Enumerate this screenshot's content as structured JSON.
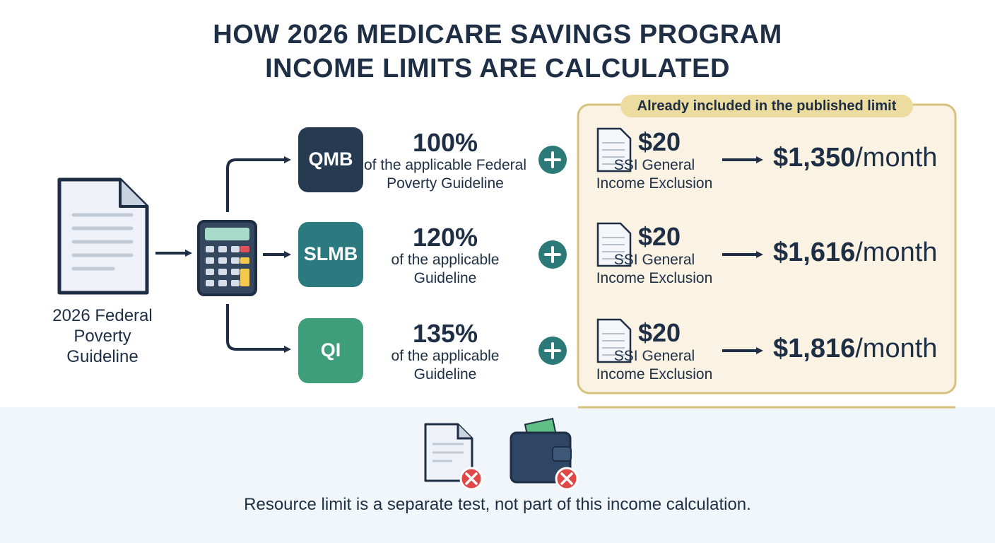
{
  "header": {
    "title_lines": [
      "HOW 2026 MEDICARE SAVINGS PROGRAM",
      "INCOME LIMITS ARE CALCULATED"
    ]
  },
  "source": {
    "label": "2026 Federal Poverty Guideline"
  },
  "included_box": {
    "label": "Already included in the published limit"
  },
  "rows": [
    {
      "program": "QMB",
      "percent": "100%",
      "description": "of the applicable Federal Poverty Guideline",
      "exclusion_amount": "$20",
      "exclusion_label": "SSI General Income Exclusion",
      "result_amount": "$1,350",
      "result_unit": "/month"
    },
    {
      "program": "SLMB",
      "percent": "120%",
      "description": "of the applicable Guideline",
      "exclusion_amount": "$20",
      "exclusion_label": "SSI General Income Exclusion",
      "result_amount": "$1,616",
      "result_unit": "/month"
    },
    {
      "program": "QI",
      "percent": "135%",
      "description": "of the applicable Guideline",
      "exclusion_amount": "$20",
      "exclusion_label": "SSI General Income Exclusion",
      "result_amount": "$1,816",
      "result_unit": "/month"
    }
  ],
  "footer": {
    "note": "Resource limit is a separate test, not part of this income calculation."
  }
}
